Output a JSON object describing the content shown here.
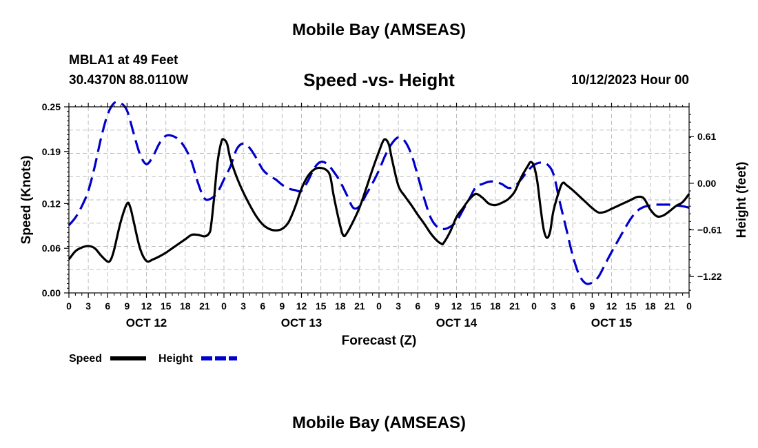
{
  "page": {
    "main_title": "Mobile Bay (AMSEAS)",
    "station": "MBLA1 at 49 Feet",
    "coords": "30.4370N  88.0110W",
    "datetime": "10/12/2023 Hour 00",
    "bottom_title": "Mobile Bay (AMSEAS)"
  },
  "chart_data": {
    "type": "line",
    "title": "Speed -vs- Height",
    "xlabel": "Forecast (Z)",
    "ylabel": "Speed (Knots)",
    "y2label": "Height (feet)",
    "x_unit": "hours from 10/12 00Z",
    "xlim": [
      0,
      96
    ],
    "ylim": [
      0,
      0.25
    ],
    "y2lim": [
      -1.435,
      1.0
    ],
    "yticks": [
      0,
      0.06,
      0.12,
      0.19,
      0.25
    ],
    "ytick_labels": [
      "0.00",
      "0.06",
      "0.12",
      "0.19",
      "0.25"
    ],
    "y2ticks": [
      -1.22,
      -0.61,
      0.0,
      0.61
    ],
    "y2tick_labels": [
      "−1.22",
      "−0.61",
      "0.00",
      "0.61"
    ],
    "xticks": [
      0,
      3,
      6,
      9,
      12,
      15,
      18,
      21,
      24,
      27,
      30,
      33,
      36,
      39,
      42,
      45,
      48,
      51,
      54,
      57,
      60,
      63,
      66,
      69,
      72,
      75,
      78,
      81,
      84,
      87,
      90,
      93,
      96
    ],
    "xtick_labels": [
      "0",
      "3",
      "6",
      "9",
      "12",
      "15",
      "18",
      "21",
      "0",
      "3",
      "6",
      "9",
      "12",
      "15",
      "18",
      "21",
      "0",
      "3",
      "6",
      "9",
      "12",
      "15",
      "18",
      "21",
      "0",
      "3",
      "6",
      "9",
      "12",
      "15",
      "18",
      "21",
      "0"
    ],
    "day_labels": [
      {
        "x": 12,
        "label": "OCT 12"
      },
      {
        "x": 36,
        "label": "OCT 13"
      },
      {
        "x": 60,
        "label": "OCT 14"
      },
      {
        "x": 84,
        "label": "OCT 15"
      }
    ],
    "grid": true,
    "series": [
      {
        "name": "Speed",
        "axis": "left",
        "color": "#000000",
        "style": "solid",
        "points": [
          [
            0,
            0.045
          ],
          [
            1,
            0.056
          ],
          [
            2,
            0.061
          ],
          [
            3,
            0.063
          ],
          [
            4,
            0.06
          ],
          [
            5,
            0.05
          ],
          [
            6,
            0.042
          ],
          [
            6.5,
            0.045
          ],
          [
            7,
            0.058
          ],
          [
            8,
            0.095
          ],
          [
            9,
            0.12
          ],
          [
            9.5,
            0.115
          ],
          [
            10,
            0.097
          ],
          [
            11,
            0.06
          ],
          [
            12,
            0.043
          ],
          [
            13,
            0.045
          ],
          [
            14,
            0.049
          ],
          [
            15,
            0.054
          ],
          [
            16,
            0.06
          ],
          [
            17,
            0.066
          ],
          [
            18,
            0.072
          ],
          [
            19,
            0.078
          ],
          [
            20,
            0.078
          ],
          [
            21,
            0.076
          ],
          [
            21.7,
            0.08
          ],
          [
            22,
            0.09
          ],
          [
            22.5,
            0.13
          ],
          [
            23,
            0.175
          ],
          [
            23.6,
            0.203
          ],
          [
            24,
            0.206
          ],
          [
            24.5,
            0.2
          ],
          [
            25,
            0.18
          ],
          [
            26,
            0.155
          ],
          [
            27,
            0.135
          ],
          [
            28,
            0.118
          ],
          [
            29,
            0.103
          ],
          [
            30,
            0.092
          ],
          [
            31,
            0.086
          ],
          [
            32,
            0.084
          ],
          [
            33,
            0.086
          ],
          [
            34,
            0.095
          ],
          [
            35,
            0.115
          ],
          [
            36,
            0.14
          ],
          [
            37,
            0.157
          ],
          [
            38,
            0.166
          ],
          [
            39,
            0.168
          ],
          [
            40,
            0.164
          ],
          [
            40.5,
            0.155
          ],
          [
            41,
            0.13
          ],
          [
            42,
            0.09
          ],
          [
            42.5,
            0.077
          ],
          [
            43,
            0.08
          ],
          [
            44,
            0.096
          ],
          [
            45,
            0.115
          ],
          [
            46,
            0.14
          ],
          [
            47,
            0.166
          ],
          [
            48,
            0.19
          ],
          [
            48.8,
            0.206
          ],
          [
            49.5,
            0.2
          ],
          [
            50,
            0.18
          ],
          [
            51,
            0.144
          ],
          [
            52,
            0.13
          ],
          [
            53,
            0.118
          ],
          [
            54,
            0.105
          ],
          [
            55,
            0.093
          ],
          [
            56,
            0.08
          ],
          [
            57,
            0.07
          ],
          [
            57.7,
            0.066
          ],
          [
            58,
            0.067
          ],
          [
            59,
            0.082
          ],
          [
            60,
            0.102
          ],
          [
            61,
            0.114
          ],
          [
            62,
            0.126
          ],
          [
            63,
            0.133
          ],
          [
            64,
            0.128
          ],
          [
            65,
            0.12
          ],
          [
            66,
            0.118
          ],
          [
            67,
            0.121
          ],
          [
            68,
            0.126
          ],
          [
            69,
            0.136
          ],
          [
            70,
            0.155
          ],
          [
            71,
            0.17
          ],
          [
            71.5,
            0.176
          ],
          [
            72,
            0.17
          ],
          [
            72.5,
            0.15
          ],
          [
            73,
            0.115
          ],
          [
            73.5,
            0.085
          ],
          [
            74,
            0.074
          ],
          [
            74.5,
            0.083
          ],
          [
            75,
            0.11
          ],
          [
            76,
            0.14
          ],
          [
            76.5,
            0.148
          ],
          [
            77,
            0.145
          ],
          [
            78,
            0.138
          ],
          [
            79,
            0.13
          ],
          [
            80,
            0.122
          ],
          [
            81,
            0.114
          ],
          [
            82,
            0.108
          ],
          [
            83,
            0.109
          ],
          [
            84,
            0.113
          ],
          [
            85,
            0.117
          ],
          [
            86,
            0.121
          ],
          [
            87,
            0.125
          ],
          [
            88,
            0.129
          ],
          [
            89,
            0.127
          ],
          [
            90,
            0.112
          ],
          [
            91,
            0.103
          ],
          [
            92,
            0.104
          ],
          [
            93,
            0.11
          ],
          [
            94,
            0.117
          ],
          [
            95,
            0.122
          ],
          [
            96,
            0.133
          ]
        ]
      },
      {
        "name": "Height",
        "axis": "right",
        "color": "#0000cc",
        "style": "dashed",
        "points": [
          [
            0,
            -0.55
          ],
          [
            1,
            -0.45
          ],
          [
            2,
            -0.3
          ],
          [
            3,
            -0.1
          ],
          [
            4,
            0.22
          ],
          [
            5,
            0.6
          ],
          [
            6,
            0.9
          ],
          [
            7,
            1.05
          ],
          [
            8,
            1.05
          ],
          [
            9,
            0.95
          ],
          [
            10,
            0.66
          ],
          [
            11,
            0.38
          ],
          [
            12,
            0.25
          ],
          [
            13,
            0.35
          ],
          [
            14,
            0.52
          ],
          [
            15,
            0.62
          ],
          [
            16,
            0.62
          ],
          [
            17,
            0.57
          ],
          [
            18,
            0.46
          ],
          [
            19,
            0.28
          ],
          [
            20,
            0.0
          ],
          [
            21,
            -0.2
          ],
          [
            22,
            -0.2
          ],
          [
            23,
            -0.12
          ],
          [
            24,
            0.05
          ],
          [
            25,
            0.22
          ],
          [
            26,
            0.45
          ],
          [
            27,
            0.52
          ],
          [
            28,
            0.46
          ],
          [
            29,
            0.33
          ],
          [
            30,
            0.18
          ],
          [
            31,
            0.1
          ],
          [
            32,
            0.05
          ],
          [
            33,
            -0.02
          ],
          [
            34,
            -0.07
          ],
          [
            35,
            -0.09
          ],
          [
            36,
            -0.1
          ],
          [
            37,
            0.03
          ],
          [
            38,
            0.2
          ],
          [
            39,
            0.28
          ],
          [
            40,
            0.25
          ],
          [
            41,
            0.15
          ],
          [
            42,
            0.02
          ],
          [
            43,
            -0.15
          ],
          [
            44,
            -0.32
          ],
          [
            45,
            -0.3
          ],
          [
            46,
            -0.15
          ],
          [
            47,
            0.0
          ],
          [
            48,
            0.17
          ],
          [
            49,
            0.37
          ],
          [
            50,
            0.52
          ],
          [
            51,
            0.6
          ],
          [
            52,
            0.55
          ],
          [
            53,
            0.38
          ],
          [
            54,
            0.1
          ],
          [
            55,
            -0.2
          ],
          [
            56,
            -0.45
          ],
          [
            57,
            -0.57
          ],
          [
            58,
            -0.6
          ],
          [
            59,
            -0.57
          ],
          [
            60,
            -0.5
          ],
          [
            61,
            -0.35
          ],
          [
            62,
            -0.2
          ],
          [
            63,
            -0.05
          ],
          [
            64,
            -0.01
          ],
          [
            65,
            0.02
          ],
          [
            66,
            0.02
          ],
          [
            67,
            -0.01
          ],
          [
            68,
            -0.06
          ],
          [
            69,
            -0.04
          ],
          [
            70,
            0.05
          ],
          [
            71,
            0.16
          ],
          [
            72,
            0.24
          ],
          [
            73,
            0.27
          ],
          [
            74,
            0.25
          ],
          [
            75,
            0.12
          ],
          [
            76,
            -0.25
          ],
          [
            77,
            -0.6
          ],
          [
            78,
            -0.95
          ],
          [
            79,
            -1.2
          ],
          [
            80,
            -1.31
          ],
          [
            81,
            -1.3
          ],
          [
            82,
            -1.22
          ],
          [
            83,
            -1.06
          ],
          [
            84,
            -0.9
          ],
          [
            85,
            -0.75
          ],
          [
            86,
            -0.6
          ],
          [
            87,
            -0.46
          ],
          [
            88,
            -0.36
          ],
          [
            89,
            -0.31
          ],
          [
            90,
            -0.29
          ],
          [
            91,
            -0.28
          ],
          [
            92,
            -0.28
          ],
          [
            93,
            -0.28
          ],
          [
            94,
            -0.29
          ],
          [
            95,
            -0.3
          ],
          [
            96,
            -0.32
          ]
        ]
      }
    ],
    "legend": [
      {
        "label": "Speed",
        "color": "#000000",
        "style": "solid"
      },
      {
        "label": "Height",
        "color": "#0000cc",
        "style": "dashed"
      }
    ]
  }
}
